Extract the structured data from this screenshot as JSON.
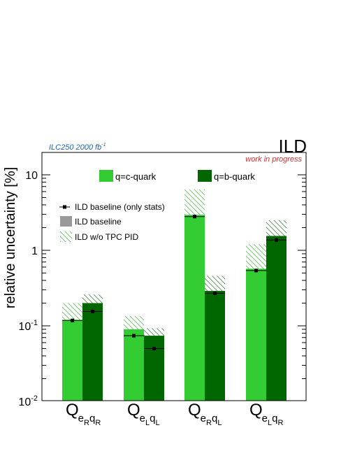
{
  "header": {
    "luminosity_label": "ILC250 2000 fb",
    "luminosity_superscript": "-1",
    "experiment": "ILD",
    "status": "work in progress"
  },
  "colors": {
    "c_quark": "#33cc33",
    "b_quark": "#006600",
    "stats_marker": "#000000",
    "baseline_band": "#999999",
    "hatch_c": "#66bb66",
    "hatch_b": "#558855",
    "luminosity_text": "#2266aa",
    "status_text": "#cc3333"
  },
  "chart_data": {
    "type": "bar",
    "ylabel": "relative uncertainty [%]",
    "yscale": "log",
    "ylim": [
      0.01,
      20
    ],
    "yticks": [
      {
        "value": 0.01,
        "base": "10",
        "exp": "-2"
      },
      {
        "value": 0.1,
        "base": "10",
        "exp": "-1"
      },
      {
        "value": 1,
        "base": "1",
        "exp": ""
      },
      {
        "value": 10,
        "base": "10",
        "exp": ""
      }
    ],
    "categories": [
      {
        "main": "Q",
        "sub1": "e",
        "sub1sub": "R",
        "sub2": "q",
        "sub2sub": "R"
      },
      {
        "main": "Q",
        "sub1": "e",
        "sub1sub": "L",
        "sub2": "q",
        "sub2sub": "L"
      },
      {
        "main": "Q",
        "sub1": "e",
        "sub1sub": "R",
        "sub2": "q",
        "sub2sub": "L"
      },
      {
        "main": "Q",
        "sub1": "e",
        "sub1sub": "L",
        "sub2": "q",
        "sub2sub": "R"
      }
    ],
    "series": [
      {
        "name": "q=c-quark",
        "color": "#33cc33",
        "baseline": [
          0.12,
          0.09,
          2.95,
          0.57
        ],
        "stats_only": [
          0.118,
          0.074,
          2.8,
          0.54
        ],
        "without_tpc_pid": [
          0.2,
          0.135,
          6.4,
          1.2
        ]
      },
      {
        "name": "q=b-quark",
        "color": "#006600",
        "baseline": [
          0.2,
          0.074,
          0.29,
          1.55
        ],
        "stats_only": [
          0.155,
          0.05,
          0.27,
          1.37
        ],
        "without_tpc_pid": [
          0.26,
          0.093,
          0.46,
          2.5
        ]
      }
    ],
    "legend": {
      "placement": "top",
      "series_entries": [
        "q=c-quark",
        "q=b-quark"
      ],
      "style_entries": [
        "ILD baseline (only stats)",
        "ILD baseline",
        "ILD w/o TPC PID"
      ]
    },
    "grid": false
  }
}
